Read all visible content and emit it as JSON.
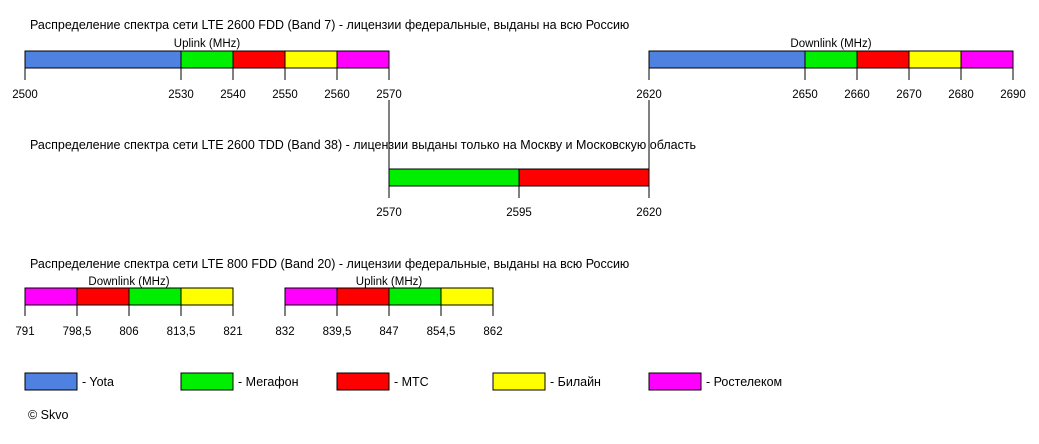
{
  "sections": [
    {
      "title": "Распределение спектра сети LTE 2600 FDD (Band 7) - лицензии федеральные, выданы на всю Россию",
      "sub_labels": [
        "Uplink (MHz)",
        "Downlink (MHz)"
      ],
      "bars": [
        {
          "ticks": [
            "2500",
            "2530",
            "2540",
            "2550",
            "2560",
            "2570"
          ],
          "segments": [
            {
              "from": 2500,
              "to": 2530,
              "operator": "yota"
            },
            {
              "from": 2530,
              "to": 2540,
              "operator": "megafon"
            },
            {
              "from": 2540,
              "to": 2550,
              "operator": "mts"
            },
            {
              "from": 2550,
              "to": 2560,
              "operator": "beeline"
            },
            {
              "from": 2560,
              "to": 2570,
              "operator": "rostelecom"
            }
          ]
        },
        {
          "ticks": [
            "2620",
            "2650",
            "2660",
            "2670",
            "2680",
            "2690"
          ],
          "segments": [
            {
              "from": 2620,
              "to": 2650,
              "operator": "yota"
            },
            {
              "from": 2650,
              "to": 2660,
              "operator": "megafon"
            },
            {
              "from": 2660,
              "to": 2670,
              "operator": "mts"
            },
            {
              "from": 2670,
              "to": 2680,
              "operator": "beeline"
            },
            {
              "from": 2680,
              "to": 2690,
              "operator": "rostelecom"
            }
          ]
        }
      ]
    },
    {
      "title": "Распределение спектра сети LTE 2600 TDD (Band 38) - лицензии выданы только на Москву и Московскую область",
      "sub_labels": [],
      "bars": [
        {
          "ticks": [
            "2570",
            "2595",
            "2620"
          ],
          "segments": [
            {
              "from": 2570,
              "to": 2595,
              "operator": "megafon"
            },
            {
              "from": 2595,
              "to": 2620,
              "operator": "mts"
            }
          ]
        }
      ]
    },
    {
      "title": "Распределение спектра сети LTE 800 FDD (Band 20) - лицензии федеральные, выданы на всю Россию",
      "sub_labels": [
        "Downlink (MHz)",
        "Uplink (MHz)"
      ],
      "bars": [
        {
          "ticks": [
            "791",
            "798,5",
            "806",
            "813,5",
            "821"
          ],
          "segments": [
            {
              "from": 791,
              "to": 798.5,
              "operator": "rostelecom"
            },
            {
              "from": 798.5,
              "to": 806,
              "operator": "mts"
            },
            {
              "from": 806,
              "to": 813.5,
              "operator": "megafon"
            },
            {
              "from": 813.5,
              "to": 821,
              "operator": "beeline"
            }
          ]
        },
        {
          "ticks": [
            "832",
            "839,5",
            "847",
            "854,5",
            "862"
          ],
          "segments": [
            {
              "from": 832,
              "to": 839.5,
              "operator": "rostelecom"
            },
            {
              "from": 839.5,
              "to": 847,
              "operator": "mts"
            },
            {
              "from": 847,
              "to": 854.5,
              "operator": "megafon"
            },
            {
              "from": 854.5,
              "to": 862,
              "operator": "beeline"
            }
          ]
        }
      ]
    }
  ],
  "operators": {
    "yota": {
      "label": "- Yota",
      "color": "#4f81e0"
    },
    "megafon": {
      "label": "- Мегафон",
      "color": "#00ef00"
    },
    "mts": {
      "label": "- МТС",
      "color": "#ff0000"
    },
    "beeline": {
      "label": "- Билайн",
      "color": "#ffff00"
    },
    "rostelecom": {
      "label": "- Ростелеком",
      "color": "#ff00ff"
    }
  },
  "legend_order": [
    "yota",
    "megafon",
    "mts",
    "beeline",
    "rostelecom"
  ],
  "copyright": "© Skvo"
}
